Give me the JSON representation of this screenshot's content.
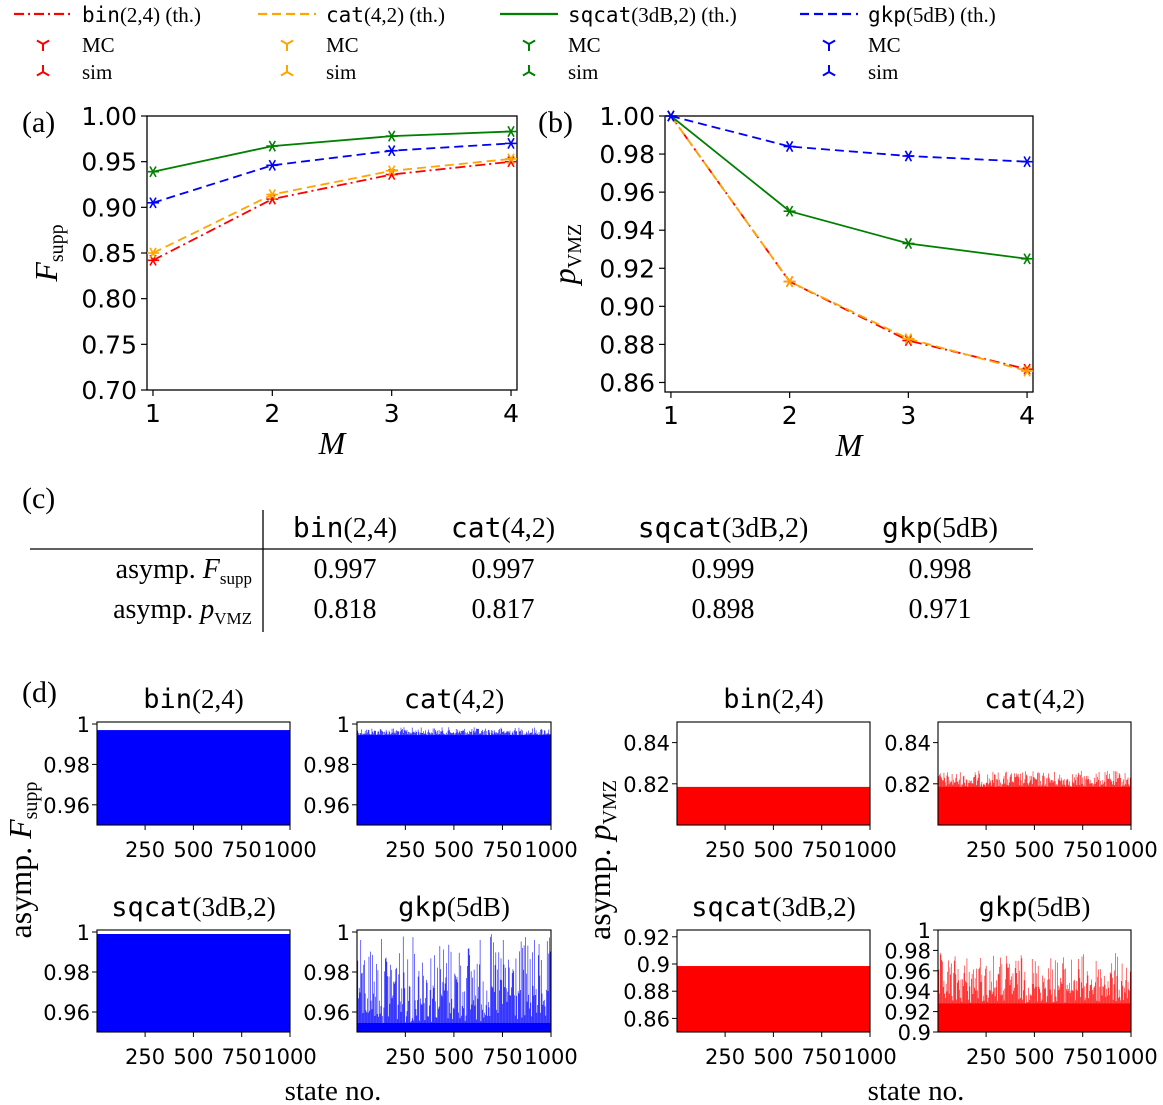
{
  "legend": {
    "entries": [
      {
        "name_code": "bin",
        "name_rest": "(2,4) (th.)",
        "color": "#ff0000",
        "dash": "dashdot",
        "mc_label": "MC",
        "sim_label": "sim"
      },
      {
        "name_code": "cat",
        "name_rest": "(4,2) (th.)",
        "color": "#ffa500",
        "dash": "dashed",
        "mc_label": "MC",
        "sim_label": "sim"
      },
      {
        "name_code": "sqcat",
        "name_rest": "(3dB,2) (th.)",
        "color": "#008000",
        "dash": "solid",
        "mc_label": "MC",
        "sim_label": "sim"
      },
      {
        "name_code": "gkp",
        "name_rest": "(5dB) (th.)",
        "color": "#0000ff",
        "dash": "dashed",
        "mc_label": "MC",
        "sim_label": "sim"
      }
    ]
  },
  "chart_data": [
    {
      "type": "line",
      "panel": "(a)",
      "xlabel": "M",
      "ylabel_main": "F",
      "ylabel_sub": "supp",
      "x": [
        1,
        2,
        3,
        4
      ],
      "xticks": [
        "1",
        "2",
        "3",
        "4"
      ],
      "xlim": [
        0.95,
        4.05
      ],
      "ylim": [
        0.7,
        1.0
      ],
      "yticks": [
        "0.70",
        "0.75",
        "0.80",
        "0.85",
        "0.90",
        "0.95",
        "1.00"
      ],
      "series": [
        {
          "name": "bin(2,4)",
          "color": "#ff0000",
          "dash": "dashdot",
          "values": [
            0.842,
            0.909,
            0.936,
            0.95
          ]
        },
        {
          "name": "cat(4,2)",
          "color": "#ffa500",
          "dash": "dashed",
          "values": [
            0.85,
            0.914,
            0.94,
            0.953
          ]
        },
        {
          "name": "sqcat(3dB,2)",
          "color": "#008000",
          "dash": "solid",
          "values": [
            0.939,
            0.967,
            0.978,
            0.983
          ]
        },
        {
          "name": "gkp(5dB)",
          "color": "#0000ff",
          "dash": "dashed",
          "values": [
            0.905,
            0.946,
            0.962,
            0.97
          ]
        }
      ]
    },
    {
      "type": "line",
      "panel": "(b)",
      "xlabel": "M",
      "ylabel_main": "p",
      "ylabel_sub": "VMZ",
      "x": [
        1,
        2,
        3,
        4
      ],
      "xticks": [
        "1",
        "2",
        "3",
        "4"
      ],
      "xlim": [
        0.95,
        4.05
      ],
      "ylim": [
        0.855,
        1.0
      ],
      "yticks": [
        "0.86",
        "0.88",
        "0.90",
        "0.92",
        "0.94",
        "0.96",
        "0.98",
        "1.00"
      ],
      "series": [
        {
          "name": "bin(2,4)",
          "color": "#ff0000",
          "dash": "dashdot",
          "values": [
            1.0,
            0.913,
            0.882,
            0.867
          ]
        },
        {
          "name": "cat(4,2)",
          "color": "#ffa500",
          "dash": "dashed",
          "values": [
            1.0,
            0.913,
            0.883,
            0.866
          ]
        },
        {
          "name": "sqcat(3dB,2)",
          "color": "#008000",
          "dash": "solid",
          "values": [
            1.0,
            0.95,
            0.933,
            0.925
          ]
        },
        {
          "name": "gkp(5dB)",
          "color": "#0000ff",
          "dash": "dashed",
          "values": [
            1.0,
            0.984,
            0.979,
            0.976
          ]
        }
      ]
    },
    {
      "type": "table",
      "panel": "(c)",
      "columns": [
        {
          "code": "bin",
          "rest": "(2,4)"
        },
        {
          "code": "cat",
          "rest": "(4,2)"
        },
        {
          "code": "sqcat",
          "rest": "(3dB,2)"
        },
        {
          "code": "gkp",
          "rest": "(5dB)"
        }
      ],
      "rows": [
        {
          "label": "asymp.",
          "sym": "F",
          "sub": "supp",
          "values": [
            "0.997",
            "0.997",
            "0.999",
            "0.998"
          ]
        },
        {
          "label": "asymp.",
          "sym": "p",
          "sub": "VMZ",
          "values": [
            "0.818",
            "0.817",
            "0.898",
            "0.971"
          ]
        }
      ]
    },
    {
      "type": "bar",
      "panel": "(d)",
      "xlabel": "state no.",
      "ylabel_left": {
        "prefix": "asymp.",
        "sym": "F",
        "sub": "supp"
      },
      "ylabel_right": {
        "prefix": "asymp.",
        "sym": "p",
        "sub": "VMZ"
      },
      "xlim": [
        1,
        1000
      ],
      "xticks": [
        "250",
        "500",
        "750",
        "1000"
      ],
      "subplots": [
        {
          "code": "bin",
          "rest": "(2,4)",
          "color": "#0000ff",
          "ylim": [
            0.95,
            1.001
          ],
          "yticks": [
            "0.96",
            "0.98",
            "1"
          ],
          "ytick_values": [
            0.96,
            0.98,
            1.0
          ],
          "level": 0.997,
          "spread": 0.0,
          "n": 1000
        },
        {
          "code": "cat",
          "rest": "(4,2)",
          "color": "#0000ff",
          "ylim": [
            0.95,
            1.001
          ],
          "yticks": [
            "0.96",
            "0.98",
            "1"
          ],
          "ytick_values": [
            0.96,
            0.98,
            1.0
          ],
          "level": 0.9985,
          "spread": 0.004,
          "n": 1000
        },
        {
          "code": "sqcat",
          "rest": "(3dB,2)",
          "color": "#0000ff",
          "ylim": [
            0.95,
            1.001
          ],
          "yticks": [
            "0.96",
            "0.98",
            "1"
          ],
          "ytick_values": [
            0.96,
            0.98,
            1.0
          ],
          "level": 0.999,
          "spread": 0.0,
          "n": 1000
        },
        {
          "code": "gkp",
          "rest": "(5dB)",
          "color": "#0000ff",
          "ylim": [
            0.95,
            1.001
          ],
          "yticks": [
            "0.96",
            "0.98",
            "1"
          ],
          "ytick_values": [
            0.96,
            0.98,
            1.0
          ],
          "level": 0.9995,
          "spread": 0.045,
          "n": 1000
        },
        {
          "code": "bin",
          "rest": "(2,4)",
          "color": "#ff0000",
          "ylim": [
            0.8,
            0.85
          ],
          "yticks": [
            "0.82",
            "0.84"
          ],
          "ytick_values": [
            0.82,
            0.84
          ],
          "level": 0.8185,
          "spread": 0.0,
          "n": 1000
        },
        {
          "code": "cat",
          "rest": "(4,2)",
          "color": "#ff0000",
          "ylim": [
            0.8,
            0.85
          ],
          "yticks": [
            "0.82",
            "0.84"
          ],
          "ytick_values": [
            0.82,
            0.84
          ],
          "level": 0.8265,
          "spread": 0.008,
          "n": 1000
        },
        {
          "code": "sqcat",
          "rest": "(3dB,2)",
          "color": "#ff0000",
          "ylim": [
            0.85,
            0.925
          ],
          "yticks": [
            "0.86",
            "0.88",
            "0.9",
            "0.92"
          ],
          "ytick_values": [
            0.86,
            0.88,
            0.9,
            0.92
          ],
          "level": 0.8985,
          "spread": 0.0,
          "n": 1000
        },
        {
          "code": "gkp",
          "rest": "(5dB)",
          "color": "#ff0000",
          "ylim": [
            0.9,
            1.0
          ],
          "yticks": [
            "0.9",
            "0.92",
            "0.94",
            "0.96",
            "0.98",
            "1"
          ],
          "ytick_values": [
            0.9,
            0.92,
            0.94,
            0.96,
            0.98,
            1.0
          ],
          "level": 0.978,
          "spread": 0.05,
          "n": 1000
        }
      ]
    }
  ]
}
